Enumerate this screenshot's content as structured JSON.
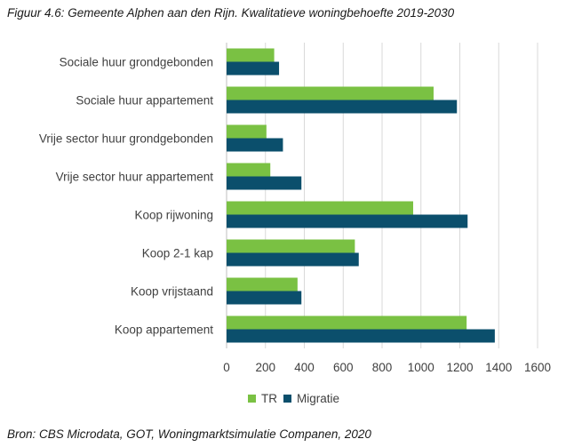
{
  "figure": {
    "title": "Figuur 4.6: Gemeente  Alphen aan den Rijn. Kwalitatieve woningbehoefte 2019-2030",
    "source": "Bron: CBS Microdata, GOT, Woningmarktsimulatie Companen, 2020"
  },
  "colors": {
    "tr": "#7ac143",
    "migratie": "#0b4f6c",
    "grid": "#d9d9d9",
    "text": "#404040"
  },
  "chart_data": {
    "type": "bar",
    "orientation": "horizontal",
    "title": "",
    "xlabel": "",
    "ylabel": "",
    "categories": [
      "Sociale huur grondgebonden",
      "Sociale huur appartement",
      "Vrije sector huur grondgebonden",
      "Vrije sector huur appartement",
      "Koop rijwoning",
      "Koop 2-1 kap",
      "Koop vrijstaand",
      "Koop appartement"
    ],
    "series": [
      {
        "name": "TR",
        "values": [
          245,
          1065,
          205,
          225,
          960,
          660,
          365,
          1235
        ]
      },
      {
        "name": "Migratie",
        "values": [
          270,
          1185,
          290,
          385,
          1240,
          680,
          385,
          1380
        ]
      }
    ],
    "xlim": [
      0,
      1600
    ],
    "xticks": [
      "0",
      "200",
      "400",
      "600",
      "800",
      "1000",
      "1200",
      "1400",
      "1600"
    ],
    "grid": "vertical",
    "legend_position": "bottom-center"
  }
}
